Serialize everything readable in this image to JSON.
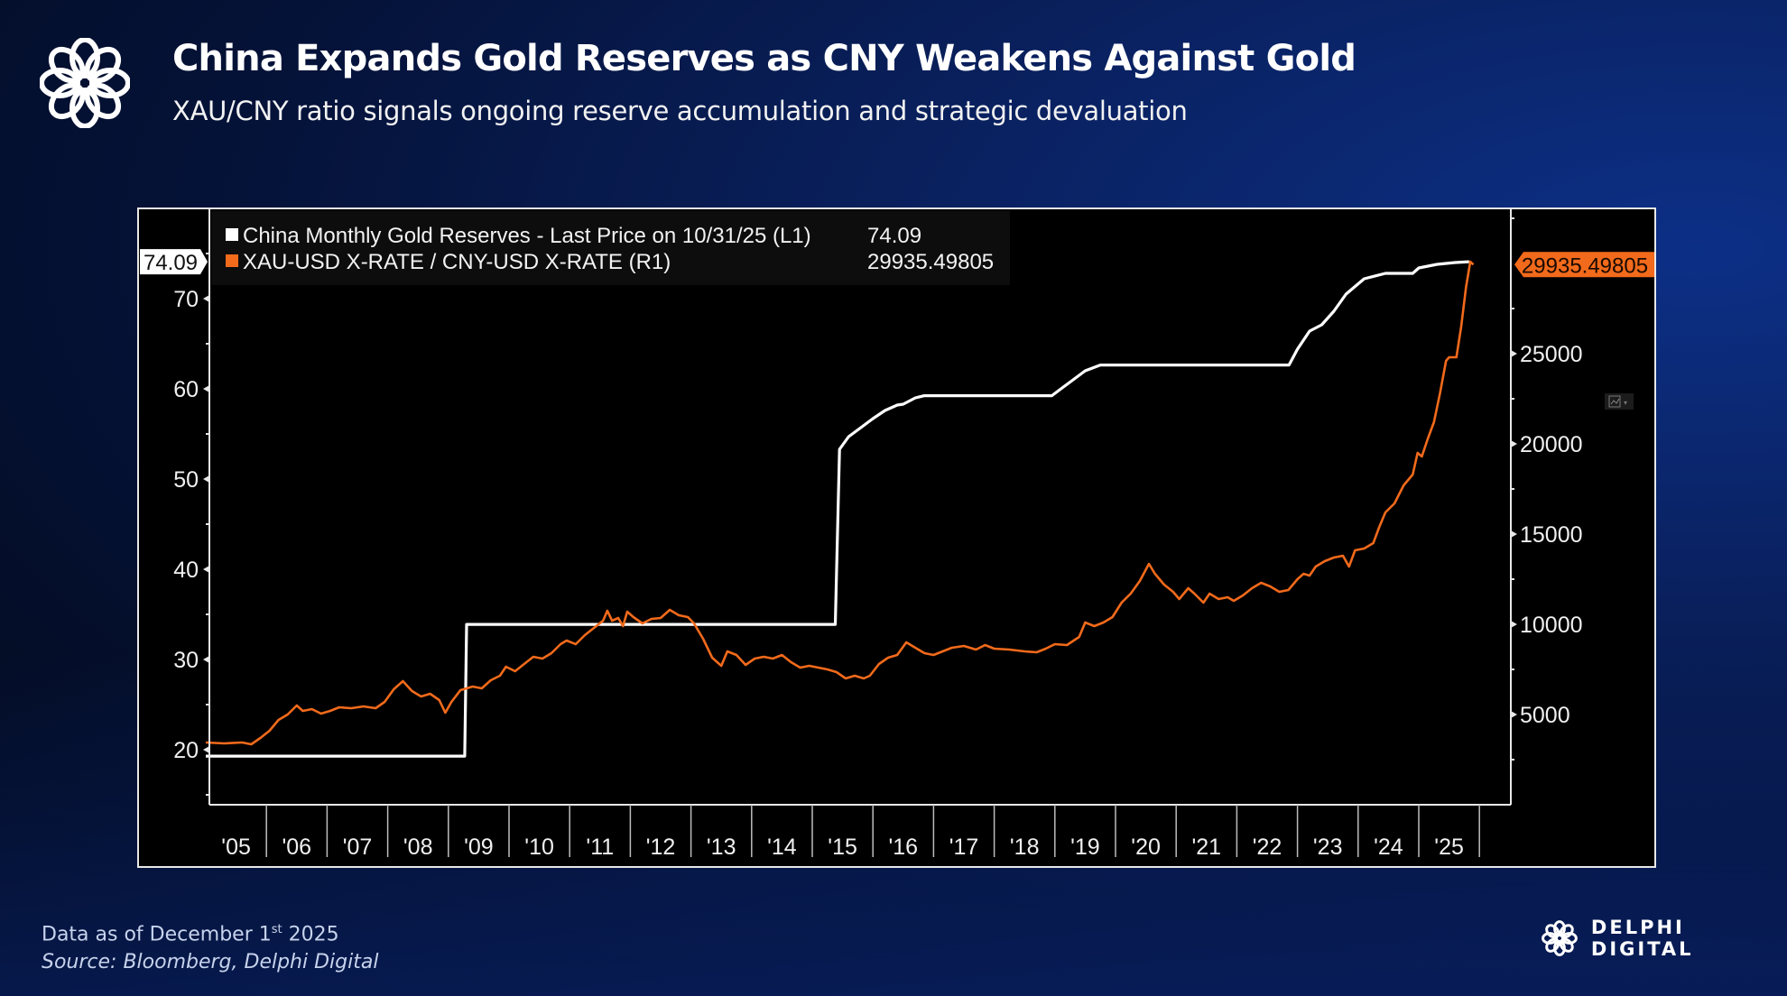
{
  "header": {
    "title": "China Expands Gold Reserves as CNY Weakens Against Gold",
    "subtitle": "XAU/CNY ratio signals ongoing reserve accumulation and strategic devaluation"
  },
  "footer": {
    "data_as_of_prefix": "Data as of December 1",
    "data_as_of_sup": "st",
    "data_as_of_suffix": " 2025",
    "source": "Source: Bloomberg, Delphi Digital"
  },
  "brand": {
    "name": "DELPHI DIGITAL"
  },
  "colors": {
    "series_white": "#ffffff",
    "series_orange": "#f26a1b",
    "axis": "#e8e8e8"
  },
  "chart_data": {
    "type": "line",
    "title": "China Expands Gold Reserves as CNY Weakens Against Gold",
    "legend_position": "top-left",
    "legend": [
      {
        "label": "China Monthly Gold Reserves - Last Price on 10/31/25 (L1)",
        "value": "74.09",
        "color": "#ffffff"
      },
      {
        "label": "XAU-USD X-RATE / CNY-USD X-RATE (R1)",
        "value": "29935.49805",
        "color": "#f26a1b"
      }
    ],
    "x_tick_labels": [
      "'05",
      "'06",
      "'07",
      "'08",
      "'09",
      "'10",
      "'11",
      "'12",
      "'13",
      "'14",
      "'15",
      "'16",
      "'17",
      "'18",
      "'19",
      "'20",
      "'21",
      "'22",
      "'23",
      "'24",
      "'25"
    ],
    "x_range": [
      2005.0,
      2026.0
    ],
    "left_axis": {
      "ticks": [
        20,
        30,
        40,
        50,
        60,
        70
      ],
      "range": [
        13.9,
        80.0
      ],
      "last_value_label": "74.09"
    },
    "right_axis": {
      "ticks": [
        5000,
        10000,
        15000,
        20000,
        25000
      ],
      "range": [
        0,
        33050
      ],
      "last_value_label": "29935.49805"
    },
    "series": [
      {
        "name": "China Monthly Gold Reserves (L1)",
        "axis": "left",
        "step": true,
        "points": [
          [
            2005.0,
            19.29
          ],
          [
            2009.27,
            19.29
          ],
          [
            2009.3,
            33.89
          ],
          [
            2015.38,
            33.89
          ],
          [
            2015.45,
            53.3
          ],
          [
            2015.6,
            54.7
          ],
          [
            2015.8,
            55.7
          ],
          [
            2016.0,
            56.7
          ],
          [
            2016.2,
            57.6
          ],
          [
            2016.4,
            58.2
          ],
          [
            2016.5,
            58.3
          ],
          [
            2016.7,
            59.0
          ],
          [
            2016.85,
            59.24
          ],
          [
            2018.95,
            59.24
          ],
          [
            2019.1,
            60.0
          ],
          [
            2019.3,
            61.0
          ],
          [
            2019.5,
            62.0
          ],
          [
            2019.75,
            62.64
          ],
          [
            2022.86,
            62.64
          ],
          [
            2023.0,
            64.4
          ],
          [
            2023.2,
            66.4
          ],
          [
            2023.4,
            67.1
          ],
          [
            2023.6,
            68.6
          ],
          [
            2023.8,
            70.5
          ],
          [
            2024.1,
            72.2
          ],
          [
            2024.45,
            72.8
          ],
          [
            2024.9,
            72.8
          ],
          [
            2025.0,
            73.4
          ],
          [
            2025.3,
            73.8
          ],
          [
            2025.6,
            74.0
          ],
          [
            2025.83,
            74.09
          ]
        ]
      },
      {
        "name": "XAU-USD X-RATE / CNY-USD X-RATE (R1)",
        "axis": "right",
        "points": [
          [
            2005.0,
            3450
          ],
          [
            2005.3,
            3400
          ],
          [
            2005.6,
            3450
          ],
          [
            2005.75,
            3350
          ],
          [
            2005.9,
            3700
          ],
          [
            2006.05,
            4100
          ],
          [
            2006.2,
            4700
          ],
          [
            2006.35,
            5000
          ],
          [
            2006.5,
            5500
          ],
          [
            2006.6,
            5200
          ],
          [
            2006.75,
            5300
          ],
          [
            2006.9,
            5050
          ],
          [
            2007.05,
            5200
          ],
          [
            2007.2,
            5400
          ],
          [
            2007.4,
            5350
          ],
          [
            2007.6,
            5450
          ],
          [
            2007.8,
            5350
          ],
          [
            2007.95,
            5700
          ],
          [
            2008.1,
            6400
          ],
          [
            2008.25,
            6850
          ],
          [
            2008.4,
            6300
          ],
          [
            2008.55,
            6000
          ],
          [
            2008.7,
            6150
          ],
          [
            2008.85,
            5800
          ],
          [
            2008.95,
            5100
          ],
          [
            2009.05,
            5700
          ],
          [
            2009.2,
            6350
          ],
          [
            2009.4,
            6550
          ],
          [
            2009.55,
            6450
          ],
          [
            2009.7,
            6900
          ],
          [
            2009.85,
            7150
          ],
          [
            2009.95,
            7650
          ],
          [
            2010.1,
            7400
          ],
          [
            2010.25,
            7800
          ],
          [
            2010.4,
            8200
          ],
          [
            2010.55,
            8100
          ],
          [
            2010.7,
            8400
          ],
          [
            2010.85,
            8900
          ],
          [
            2010.95,
            9100
          ],
          [
            2011.1,
            8900
          ],
          [
            2011.25,
            9400
          ],
          [
            2011.4,
            9800
          ],
          [
            2011.55,
            10200
          ],
          [
            2011.62,
            10750
          ],
          [
            2011.7,
            10200
          ],
          [
            2011.8,
            10350
          ],
          [
            2011.88,
            9900
          ],
          [
            2011.95,
            10700
          ],
          [
            2012.05,
            10400
          ],
          [
            2012.2,
            10050
          ],
          [
            2012.35,
            10300
          ],
          [
            2012.5,
            10350
          ],
          [
            2012.65,
            10800
          ],
          [
            2012.8,
            10500
          ],
          [
            2012.95,
            10400
          ],
          [
            2013.05,
            10050
          ],
          [
            2013.2,
            9200
          ],
          [
            2013.35,
            8150
          ],
          [
            2013.5,
            7700
          ],
          [
            2013.6,
            8500
          ],
          [
            2013.75,
            8300
          ],
          [
            2013.9,
            7750
          ],
          [
            2014.05,
            8100
          ],
          [
            2014.2,
            8200
          ],
          [
            2014.35,
            8100
          ],
          [
            2014.5,
            8300
          ],
          [
            2014.65,
            7900
          ],
          [
            2014.8,
            7600
          ],
          [
            2014.95,
            7700
          ],
          [
            2015.1,
            7600
          ],
          [
            2015.25,
            7500
          ],
          [
            2015.4,
            7350
          ],
          [
            2015.55,
            7000
          ],
          [
            2015.7,
            7150
          ],
          [
            2015.85,
            7000
          ],
          [
            2015.95,
            7150
          ],
          [
            2016.1,
            7800
          ],
          [
            2016.25,
            8150
          ],
          [
            2016.4,
            8300
          ],
          [
            2016.55,
            9000
          ],
          [
            2016.7,
            8700
          ],
          [
            2016.85,
            8400
          ],
          [
            2017.0,
            8300
          ],
          [
            2017.15,
            8500
          ],
          [
            2017.3,
            8700
          ],
          [
            2017.5,
            8800
          ],
          [
            2017.7,
            8600
          ],
          [
            2017.85,
            8850
          ],
          [
            2018.0,
            8650
          ],
          [
            2018.25,
            8600
          ],
          [
            2018.5,
            8500
          ],
          [
            2018.7,
            8450
          ],
          [
            2018.85,
            8650
          ],
          [
            2019.0,
            8900
          ],
          [
            2019.2,
            8850
          ],
          [
            2019.4,
            9300
          ],
          [
            2019.5,
            10100
          ],
          [
            2019.65,
            9900
          ],
          [
            2019.8,
            10100
          ],
          [
            2019.95,
            10400
          ],
          [
            2020.1,
            11200
          ],
          [
            2020.25,
            11700
          ],
          [
            2020.4,
            12400
          ],
          [
            2020.55,
            13350
          ],
          [
            2020.65,
            12800
          ],
          [
            2020.8,
            12200
          ],
          [
            2020.95,
            11800
          ],
          [
            2021.05,
            11400
          ],
          [
            2021.2,
            12000
          ],
          [
            2021.3,
            11700
          ],
          [
            2021.45,
            11200
          ],
          [
            2021.55,
            11700
          ],
          [
            2021.7,
            11400
          ],
          [
            2021.85,
            11500
          ],
          [
            2021.95,
            11300
          ],
          [
            2022.1,
            11600
          ],
          [
            2022.25,
            12000
          ],
          [
            2022.4,
            12300
          ],
          [
            2022.55,
            12100
          ],
          [
            2022.7,
            11800
          ],
          [
            2022.85,
            11900
          ],
          [
            2023.0,
            12500
          ],
          [
            2023.1,
            12800
          ],
          [
            2023.2,
            12700
          ],
          [
            2023.3,
            13200
          ],
          [
            2023.45,
            13500
          ],
          [
            2023.6,
            13700
          ],
          [
            2023.75,
            13800
          ],
          [
            2023.85,
            13200
          ],
          [
            2023.95,
            14100
          ],
          [
            2024.1,
            14200
          ],
          [
            2024.25,
            14500
          ],
          [
            2024.35,
            15400
          ],
          [
            2024.45,
            16200
          ],
          [
            2024.6,
            16700
          ],
          [
            2024.75,
            17700
          ],
          [
            2024.9,
            18300
          ],
          [
            2024.98,
            19500
          ],
          [
            2025.05,
            19300
          ],
          [
            2025.15,
            20300
          ],
          [
            2025.25,
            21200
          ],
          [
            2025.35,
            22800
          ],
          [
            2025.45,
            24600
          ],
          [
            2025.5,
            24800
          ],
          [
            2025.62,
            24800
          ],
          [
            2025.7,
            26500
          ],
          [
            2025.78,
            28700
          ],
          [
            2025.85,
            30100
          ],
          [
            2025.9,
            29935
          ]
        ]
      }
    ]
  }
}
